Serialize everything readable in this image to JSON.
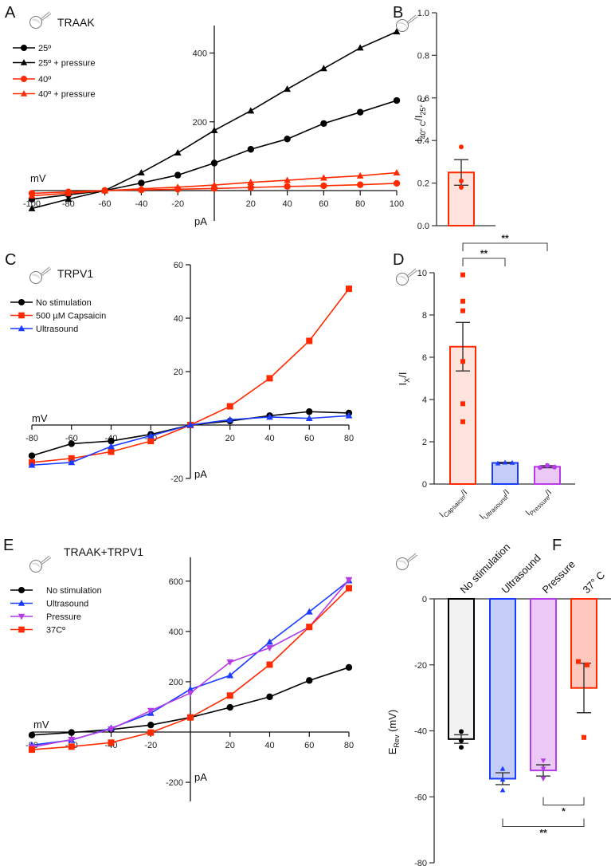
{
  "chart_data": [
    {
      "id": "A",
      "type": "line",
      "panel_letter": "A",
      "title": "TRAAK",
      "xlabel": "mV",
      "ylabel": "pA",
      "xlim": [
        -100,
        100
      ],
      "ylim": [
        -70,
        480
      ],
      "xticks": [
        -100,
        -80,
        -60,
        -40,
        -20,
        20,
        40,
        60,
        80,
        100
      ],
      "xtick_labels": [
        "-100",
        "-80",
        "-60",
        "-40",
        "-20",
        "20",
        "40",
        "60",
        "80",
        "100"
      ],
      "yticks": [
        200,
        400
      ],
      "ytick_labels": [
        "200",
        "400"
      ],
      "x": [
        -100,
        -80,
        -60,
        -40,
        -20,
        0,
        20,
        40,
        60,
        80,
        100
      ],
      "legend": "top-left",
      "series": [
        {
          "name": "25º",
          "color": "#000000",
          "marker": "circle",
          "values": [
            -25,
            -12,
            0,
            22,
            45,
            80,
            120,
            150,
            195,
            228,
            262
          ]
        },
        {
          "name": "25º + pressure",
          "color": "#000000",
          "marker": "triangle",
          "values": [
            -52,
            -25,
            0,
            52,
            110,
            175,
            232,
            295,
            355,
            415,
            462
          ]
        },
        {
          "name": "40º",
          "color": "#ff2a00",
          "marker": "circle",
          "values": [
            -8,
            -4,
            0,
            2,
            4,
            6,
            9,
            12,
            14,
            17,
            21
          ]
        },
        {
          "name": "40º + pressure",
          "color": "#ff2a00",
          "marker": "triangle",
          "values": [
            -15,
            -8,
            0,
            5,
            10,
            16,
            24,
            30,
            37,
            43,
            52
          ]
        }
      ]
    },
    {
      "id": "B",
      "type": "bar",
      "panel_letter": "B",
      "categories": [
        ""
      ],
      "values": [
        0.25
      ],
      "sem": [
        0.06
      ],
      "points": [
        [
          0.37,
          0.21,
          0.18
        ]
      ],
      "ylabel": "I40° C/I25° C",
      "ylabel_main": "I",
      "ylabel_sub1": "40° C",
      "ylabel_mid": "/I",
      "ylabel_sub2": "25° C",
      "ylim": [
        0,
        1.0
      ],
      "yticks": [
        0.0,
        0.2,
        0.4,
        0.6,
        0.8,
        1.0
      ],
      "ytick_labels": [
        "0.0",
        "0.2",
        "0.4",
        "0.6",
        "0.8",
        "1.0"
      ],
      "colors": [
        {
          "stroke": "#ff2a00",
          "fill": "#ffe2dc"
        }
      ]
    },
    {
      "id": "C",
      "type": "line",
      "panel_letter": "C",
      "title": "TRPV1",
      "xlabel": "mV",
      "ylabel": "pA",
      "xlim": [
        -80,
        80
      ],
      "ylim": [
        -20,
        60
      ],
      "xticks": [
        -80,
        -60,
        -40,
        -20,
        20,
        40,
        60,
        80
      ],
      "xtick_labels": [
        "-80",
        "-60",
        "-40",
        "-20",
        "20",
        "40",
        "60",
        "80"
      ],
      "yticks": [
        -20,
        20,
        40,
        60
      ],
      "ytick_labels": [
        "-20",
        "20",
        "40",
        "60"
      ],
      "x": [
        -80,
        -60,
        -40,
        -20,
        0,
        20,
        40,
        60,
        80
      ],
      "legend": "top-left",
      "series": [
        {
          "name": "No stimulation",
          "color": "#000000",
          "marker": "circle",
          "values": [
            -11.5,
            -7,
            -6,
            -3.5,
            0,
            1.5,
            3.5,
            5,
            4.5
          ]
        },
        {
          "name": "500 µM Capsaicin",
          "color": "#ff2a00",
          "marker": "square",
          "values": [
            -14,
            -12.5,
            -10,
            -6,
            0,
            7,
            17.5,
            31.5,
            51
          ]
        },
        {
          "name": "Ultrasound",
          "color": "#1a3cff",
          "marker": "triangle",
          "values": [
            -15,
            -14,
            -8,
            -4,
            0,
            2,
            3,
            2.5,
            3.5
          ]
        }
      ]
    },
    {
      "id": "D",
      "type": "bar",
      "panel_letter": "D",
      "categories": [
        "ICapsaicin/I",
        "IUltrasound/I",
        "IPressure/I"
      ],
      "category_parts": [
        {
          "main": "I",
          "sub": "Capsaicin",
          "rest": "/I"
        },
        {
          "main": "I",
          "sub": "Ultrasound",
          "rest": "/I"
        },
        {
          "main": "I",
          "sub": "Pressure",
          "rest": "/I"
        }
      ],
      "values": [
        6.5,
        1.0,
        0.82
      ],
      "sem": [
        1.15,
        0.03,
        0.05
      ],
      "points": [
        [
          9.9,
          8.65,
          8.2,
          5.8,
          3.8,
          2.95
        ],
        [
          0.98,
          1.02,
          1.01
        ],
        [
          0.78,
          0.88,
          0.8
        ]
      ],
      "point_markers": [
        "square",
        "triangle",
        "circle"
      ],
      "ylabel": "Ix/I",
      "ylabel_main": "I",
      "ylabel_sub": "X",
      "ylabel_rest": "/I",
      "ylim": [
        0,
        10
      ],
      "yticks": [
        0,
        2,
        4,
        6,
        8,
        10
      ],
      "ytick_labels": [
        "0",
        "2",
        "4",
        "6",
        "8",
        "10"
      ],
      "colors": [
        {
          "stroke": "#ff2a00",
          "fill": "#ffe4de"
        },
        {
          "stroke": "#1a3cff",
          "fill": "#c3cdf8"
        },
        {
          "stroke": "#b53ce6",
          "fill": "#ecc8f6"
        }
      ],
      "significance": [
        {
          "from": 0,
          "to": 1,
          "label": "**"
        },
        {
          "from": 0,
          "to": 2,
          "label": "**"
        }
      ]
    },
    {
      "id": "E",
      "type": "line",
      "panel_letter": "E",
      "title": "TRAAK+TRPV1",
      "xlabel": "mV",
      "ylabel": "pA",
      "xlim": [
        -80,
        80
      ],
      "ylim": [
        -200,
        650
      ],
      "xticks": [
        -80,
        -60,
        -40,
        -20,
        20,
        40,
        60,
        80
      ],
      "xtick_labels": [
        "-80",
        "-60",
        "-40",
        "-20",
        "20",
        "40",
        "60",
        "80"
      ],
      "yticks": [
        -200,
        200,
        400,
        600
      ],
      "ytick_labels": [
        "-200",
        "200",
        "400",
        "600"
      ],
      "x": [
        -80,
        -60,
        -40,
        -20,
        0,
        20,
        40,
        60,
        80
      ],
      "legend": "top-left",
      "series": [
        {
          "name": "No stimulation",
          "color": "#000000",
          "marker": "circle",
          "values": [
            -12,
            -2,
            10,
            28,
            58,
            98,
            140,
            205,
            257
          ]
        },
        {
          "name": "Ultrasound",
          "color": "#1a3cff",
          "marker": "triangle",
          "values": [
            -52,
            -32,
            15,
            75,
            170,
            225,
            358,
            478,
            602
          ]
        },
        {
          "name": "Pressure",
          "color": "#b53ce6",
          "marker": "triangle-down",
          "values": [
            -60,
            -30,
            12,
            85,
            155,
            278,
            335,
            418,
            605
          ]
        },
        {
          "name": "37Cº",
          "color": "#ff2a00",
          "marker": "square",
          "values": [
            -70,
            -58,
            -42,
            -2,
            58,
            145,
            268,
            418,
            572
          ]
        }
      ]
    },
    {
      "id": "F",
      "type": "bar",
      "panel_letter": "F",
      "categories": [
        "No stimulation",
        "Ultrasound",
        "Pressure",
        "37° C"
      ],
      "values": [
        -42.5,
        -54.5,
        -52,
        -27
      ],
      "sem": [
        1.3,
        1.8,
        1.7,
        7.5
      ],
      "points": [
        [
          -40.2,
          -43,
          -45
        ],
        [
          -51.5,
          -54.8,
          -58
        ],
        [
          -49,
          -51.5,
          -54.5
        ],
        [
          -19,
          -20,
          -42
        ]
      ],
      "point_markers": [
        "circle",
        "triangle",
        "triangle-down",
        "square"
      ],
      "ylabel": "ERev (mV)",
      "ylabel_main": "E",
      "ylabel_sub": "Rev",
      "ylabel_rest": " (mV)",
      "ylim": [
        -80,
        0
      ],
      "yticks": [
        0,
        -20,
        -40,
        -60,
        -80
      ],
      "ytick_labels": [
        "0",
        "-20",
        "-40",
        "-60",
        "-80"
      ],
      "colors": [
        {
          "stroke": "#000000",
          "fill": "#f2f2f2"
        },
        {
          "stroke": "#1a3cff",
          "fill": "#c3cdf8"
        },
        {
          "stroke": "#b53ce6",
          "fill": "#ecc8f6"
        },
        {
          "stroke": "#ff2a00",
          "fill": "#ffc8be"
        }
      ],
      "significance": [
        {
          "from": 2,
          "to": 3,
          "label": "*"
        },
        {
          "from": 1,
          "to": 3,
          "label": "**"
        }
      ]
    }
  ]
}
